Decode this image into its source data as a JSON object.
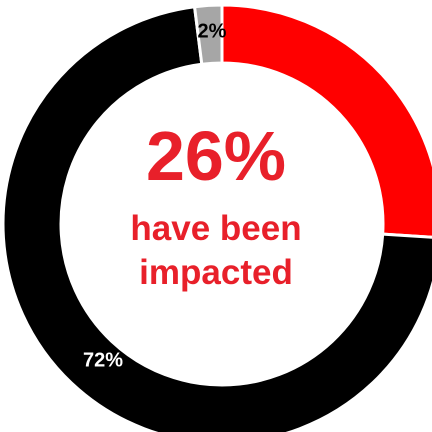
{
  "chart_data": {
    "type": "pie",
    "variant": "donut",
    "slices": [
      {
        "label": "26%",
        "value": 26,
        "color": "#ff0000",
        "label_color": "#ff0000"
      },
      {
        "label": "72%",
        "value": 72,
        "color": "#000000",
        "label_color": "#ffffff"
      },
      {
        "label": "2%",
        "value": 2,
        "color": "#a6a6a6",
        "label_color": "#000000"
      }
    ],
    "center_text": {
      "value": "26%",
      "line1": "have been",
      "line2": "impacted",
      "color": "#e8202a"
    },
    "start_angle_deg": 0,
    "direction": "clockwise"
  }
}
